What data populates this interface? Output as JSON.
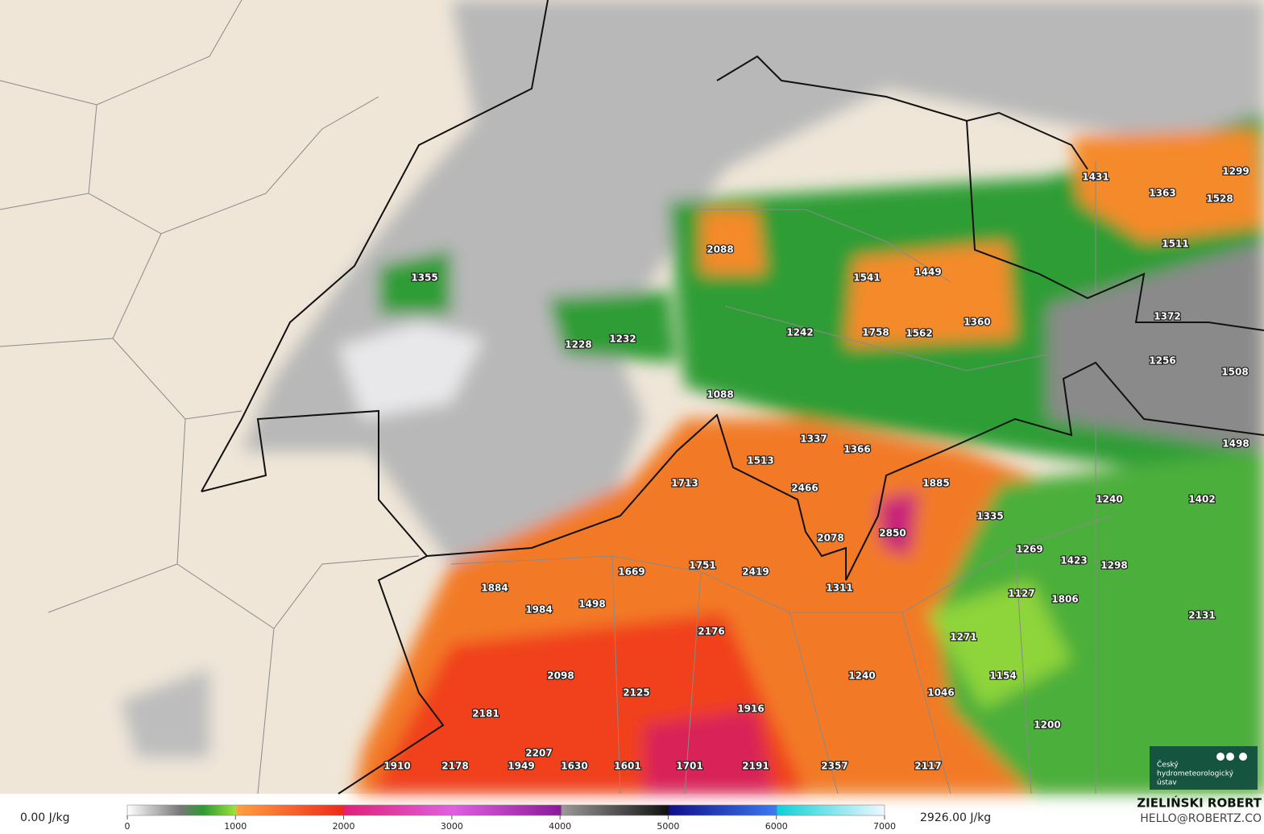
{
  "map": {
    "labels": [
      1355,
      2088,
      1541,
      1449,
      1228,
      1232,
      1242,
      1758,
      1562,
      1360,
      1431,
      1363,
      1299,
      1528,
      1511,
      1372,
      1256,
      1508,
      1088,
      1337,
      1366,
      1513,
      1498,
      1713,
      2466,
      1885,
      1335,
      1240,
      1402,
      2078,
      2850,
      1269,
      1423,
      1298,
      1884,
      1669,
      1751,
      2419,
      1311,
      1127,
      1806,
      2131,
      1984,
      1498,
      2176,
      1271,
      2098,
      2125,
      1240,
      1154,
      1046,
      2181,
      1916,
      1200,
      2207,
      1910,
      2178,
      1949,
      1630,
      1601,
      1701,
      2191,
      2357,
      2117
    ],
    "logo": [
      "Český",
      "hydrometeorologický",
      "ústav"
    ]
  },
  "legend": {
    "min_label": "0.00 J/kg",
    "max_label": "2926.00 J/kg",
    "range": [
      0,
      7000
    ],
    "ticks": [
      0,
      1000,
      2000,
      3000,
      4000,
      5000,
      6000,
      7000
    ]
  },
  "credit": {
    "author": "ZIELIŃSKI ROBERT",
    "email": "HELLO@ROBERTZ.CO"
  }
}
